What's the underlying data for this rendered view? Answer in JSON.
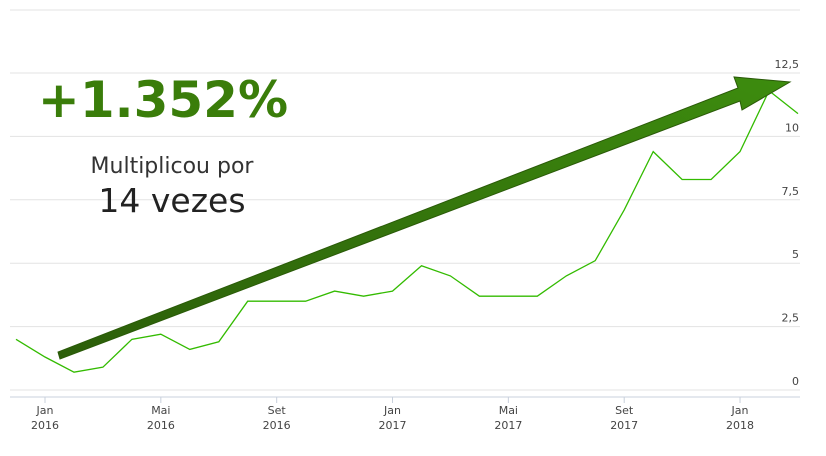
{
  "chart_data": {
    "type": "line",
    "headline": "+1.352%",
    "note": "Multiplicou por",
    "note_big": "14 vezes",
    "x": [
      "2015-12",
      "2016-01",
      "2016-02",
      "2016-03",
      "2016-04",
      "2016-05",
      "2016-06",
      "2016-07",
      "2016-08",
      "2016-09",
      "2016-10",
      "2016-11",
      "2016-12",
      "2017-01",
      "2017-02",
      "2017-03",
      "2017-04",
      "2017-05",
      "2017-06",
      "2017-07",
      "2017-08",
      "2017-09",
      "2017-10",
      "2017-11",
      "2017-12",
      "2018-01",
      "2018-02",
      "2018-03"
    ],
    "values": [
      2.0,
      1.3,
      0.7,
      0.9,
      2.0,
      2.2,
      1.6,
      1.9,
      3.5,
      3.5,
      3.5,
      3.9,
      3.7,
      3.9,
      4.9,
      4.5,
      3.7,
      3.7,
      3.7,
      4.5,
      5.1,
      7.1,
      9.4,
      8.3,
      8.3,
      9.4,
      11.8,
      10.9
    ],
    "color": "#33bb00",
    "ylim": [
      0,
      15
    ],
    "yticks": [
      0,
      {
        "value": 2.5,
        "label": "2,5"
      },
      5,
      {
        "value": 7.5,
        "label": "7,5"
      },
      10,
      {
        "value": 12.5,
        "label": "12,5"
      }
    ],
    "xticks": [
      {
        "value": "2016-01",
        "label": "Jan",
        "year": "2016"
      },
      {
        "value": "2016-05",
        "label": "Mai",
        "year": "2016"
      },
      {
        "value": "2016-09",
        "label": "Set",
        "year": "2016"
      },
      {
        "value": "2017-01",
        "label": "Jan",
        "year": "2017"
      },
      {
        "value": "2017-05",
        "label": "Mai",
        "year": "2017"
      },
      {
        "value": "2017-09",
        "label": "Set",
        "year": "2017"
      },
      {
        "value": "2018-01",
        "label": "Jan",
        "year": "2018"
      }
    ],
    "grid": true
  }
}
